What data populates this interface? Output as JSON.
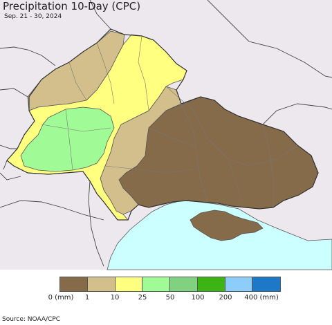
{
  "title": "Precipitation 10-Day (CPC)",
  "subtitle": "Sep. 21 - 30, 2024",
  "legend": {
    "colors": [
      "#856b4a",
      "#d3bf8c",
      "#ffff80",
      "#a0fa96",
      "#80d180",
      "#3cb414",
      "#8ccdfa",
      "#1e78c8"
    ],
    "labels": [
      "0 (mm)",
      "1",
      "10",
      "25",
      "50",
      "100",
      "200",
      "400 (mm)"
    ]
  },
  "source": "Source: NOAA/CPC",
  "map": {
    "sea_color": "#ccffff",
    "land_outside_color": "#ede8ed",
    "border_color": "#555555",
    "region_border_color": "#888888"
  }
}
